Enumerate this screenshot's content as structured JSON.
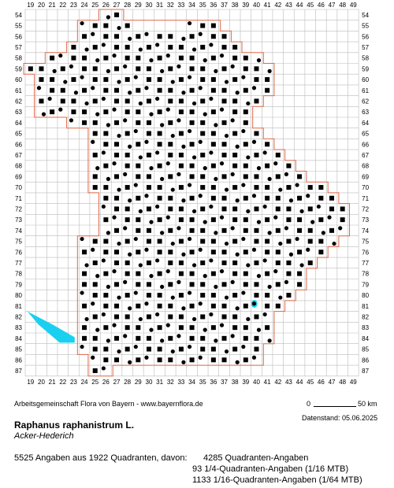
{
  "map": {
    "x_ticks": [
      "19",
      "20",
      "21",
      "22",
      "23",
      "24",
      "25",
      "26",
      "27",
      "28",
      "29",
      "30",
      "31",
      "32",
      "33",
      "34",
      "35",
      "36",
      "37",
      "38",
      "39",
      "40",
      "41",
      "42",
      "43",
      "44",
      "45",
      "46",
      "47",
      "48",
      "49"
    ],
    "y_ticks": [
      "54",
      "55",
      "56",
      "57",
      "58",
      "59",
      "60",
      "61",
      "62",
      "63",
      "64",
      "65",
      "66",
      "67",
      "68",
      "69",
      "70",
      "71",
      "72",
      "73",
      "74",
      "75",
      "76",
      "77",
      "78",
      "79",
      "80",
      "81",
      "82",
      "83",
      "84",
      "85",
      "86",
      "87"
    ],
    "colors": {
      "grid": "#bbbbbb",
      "border": "#e06a4a",
      "water": "#1ad0f0",
      "river": "#7fb3d5",
      "marker": "#000000"
    },
    "marker_types": [
      "square-quadrant",
      "circle-quarter-quadrant",
      "circle-small-sub-quadrant"
    ],
    "symbol_count": 1922
  },
  "footer": {
    "credit": "Arbeitsgemeinschaft Flora von Bayern - www.bayernflora.de",
    "scale_start": "0",
    "scale_end": "50 km",
    "date": "Datenstand: 05.06.2025"
  },
  "species": {
    "name": "Raphanus raphanistrum L.",
    "common": "Acker-Hederich"
  },
  "stats": {
    "summary": "5525 Angaben aus 1922 Quadranten, davon:",
    "lines": [
      "4285 Quadranten-Angaben",
      "93 1/4-Quadranten-Angaben (1/16 MTB)",
      "1133 1/16-Quadranten-Angaben (1/64 MTB)"
    ]
  }
}
